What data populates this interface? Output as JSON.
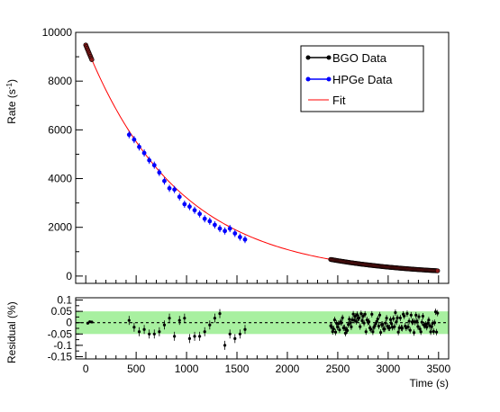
{
  "chart_data": [
    {
      "type": "scatter",
      "panel": "main",
      "xlim": [
        -100,
        3600
      ],
      "ylim": [
        -300,
        10000
      ],
      "ylabel": "Rate (s",
      "ylabel_sup": "-1",
      "ylabel_end": ")",
      "yticks": [
        0,
        2000,
        4000,
        6000,
        8000,
        10000
      ],
      "ytick_labels": [
        "0",
        "2000",
        "4000",
        "6000",
        "8000",
        "10000"
      ],
      "xticks": [
        0,
        500,
        1000,
        1500,
        2000,
        2500,
        3000,
        3500
      ],
      "legend": {
        "placement": "top-right",
        "entries": [
          {
            "label": "BGO Data",
            "color": "#000000",
            "kind": "marker"
          },
          {
            "label": "HPGe Data",
            "color": "#0000ff",
            "kind": "marker"
          },
          {
            "label": "Fit",
            "color": "#ff0000",
            "kind": "line"
          }
        ]
      },
      "fit": {
        "amplitude": 9480,
        "half_life_s": 640,
        "color": "#ff0000"
      },
      "series": [
        {
          "name": "BGO Data",
          "color": "#000000",
          "fill": "#8b1a1a",
          "segments": [
            {
              "x_start": 0,
              "x_end": 60,
              "count": 10
            },
            {
              "x_start": 2430,
              "x_end": 3490,
              "count": 110
            }
          ]
        },
        {
          "name": "HPGe Data",
          "color": "#0000ff",
          "x": [
            430,
            480,
            530,
            580,
            630,
            680,
            730,
            780,
            830,
            880,
            930,
            980,
            1030,
            1080,
            1130,
            1180,
            1230,
            1280,
            1330,
            1380,
            1430,
            1480,
            1530,
            1580
          ],
          "y": [
            5800,
            5600,
            5300,
            5050,
            4750,
            4550,
            4250,
            3900,
            3600,
            3550,
            3250,
            2950,
            2850,
            2700,
            2550,
            2350,
            2250,
            2100,
            1950,
            1850,
            1950,
            1750,
            1600,
            1500
          ]
        }
      ]
    },
    {
      "type": "scatter",
      "panel": "residual",
      "xlim": [
        -100,
        3600
      ],
      "ylim": [
        -0.16,
        0.11
      ],
      "xlabel": "Time (s)",
      "ylabel": "Residual (%)",
      "xticks": [
        0,
        500,
        1000,
        1500,
        2000,
        2500,
        3000,
        3500
      ],
      "xtick_labels": [
        "0",
        "500",
        "1000",
        "1500",
        "2000",
        "2500",
        "3000",
        "3500"
      ],
      "yticks": [
        -0.15,
        -0.1,
        -0.05,
        0,
        0.05,
        0.1
      ],
      "ytick_labels": [
        "-0.15",
        "-0.1",
        "-0.05",
        "0",
        "0.05",
        "0.1"
      ],
      "band": {
        "low": -0.05,
        "high": 0.05,
        "color": "#a8f0a0"
      },
      "zero_line": {
        "y": 0,
        "style": "dashed",
        "color": "#000000"
      },
      "series": [
        {
          "name": "BGO Data",
          "color": "#000000",
          "x": [
            20,
            40,
            60
          ],
          "y": [
            -0.002,
            0.004,
            0.003
          ]
        },
        {
          "name": "HPGe Data",
          "color": "#000000",
          "x": [
            430,
            480,
            530,
            580,
            630,
            680,
            730,
            780,
            830,
            880,
            930,
            980,
            1030,
            1080,
            1130,
            1180,
            1230,
            1280,
            1330,
            1380,
            1430,
            1480,
            1530,
            1580
          ],
          "y": [
            0.01,
            -0.02,
            -0.04,
            -0.03,
            -0.05,
            -0.05,
            -0.04,
            -0.01,
            0.02,
            -0.06,
            0.01,
            0.02,
            -0.07,
            -0.06,
            -0.06,
            -0.04,
            -0.01,
            0.02,
            0.04,
            -0.1,
            -0.05,
            -0.07,
            -0.05,
            -0.03
          ]
        },
        {
          "name": "BGO Data (late)",
          "color": "#000000",
          "segment": {
            "x_start": 2430,
            "x_end": 3490,
            "count": 110,
            "spread": 0.04
          }
        }
      ]
    }
  ]
}
